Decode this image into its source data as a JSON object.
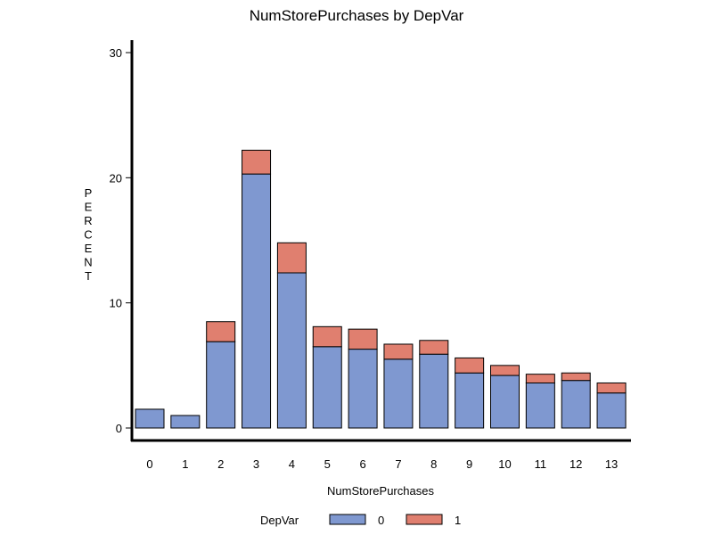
{
  "chart_data": {
    "type": "bar",
    "stacked": true,
    "title": "NumStorePurchases by DepVar",
    "xlabel": "NumStorePurchases",
    "ylabel": "PERCENT",
    "categories": [
      "0",
      "1",
      "2",
      "3",
      "4",
      "5",
      "6",
      "7",
      "8",
      "9",
      "10",
      "11",
      "12",
      "13"
    ],
    "ylim": [
      0,
      30
    ],
    "yticks": [
      "0",
      "10",
      "20",
      "30"
    ],
    "series": [
      {
        "name": "0",
        "color": "#7f98d0",
        "values": [
          1.5,
          1.0,
          6.9,
          20.3,
          12.4,
          6.5,
          6.3,
          5.5,
          5.9,
          4.4,
          4.2,
          3.6,
          3.8,
          2.8
        ]
      },
      {
        "name": "1",
        "color": "#e07f6f",
        "values": [
          0.0,
          0.0,
          1.6,
          1.9,
          2.4,
          1.6,
          1.6,
          1.2,
          1.1,
          1.2,
          0.8,
          0.7,
          0.6,
          0.8
        ]
      }
    ],
    "legend": {
      "title": "DepVar",
      "placement": "bottom"
    },
    "grid": false
  }
}
